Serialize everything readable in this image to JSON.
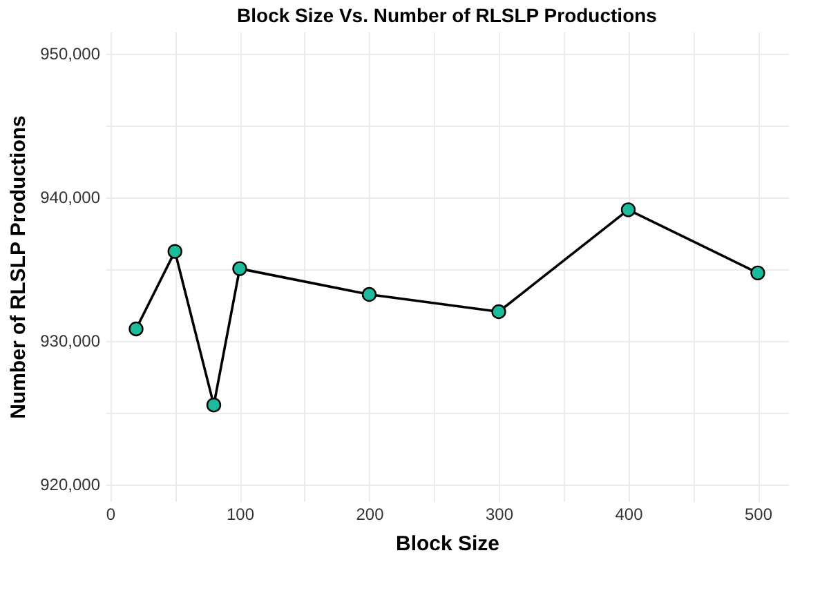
{
  "chart_data": {
    "type": "line",
    "title": "Block Size Vs. Number of RLSLP Productions",
    "xlabel": "Block Size",
    "ylabel": "Number of RLSLP Productions",
    "x": [
      20,
      50,
      80,
      100,
      200,
      300,
      400,
      500
    ],
    "series": [
      {
        "color": "#000000",
        "colors": [
          "#1abc9c",
          "#1abc9c",
          "#1abc9c",
          "#1abc9c",
          "#1abc9c",
          "#1abc9c",
          "#1abc9c",
          "#1abc9c"
        ],
        "values": [
          930800,
          936200,
          925500,
          935000,
          933200,
          932000,
          939100,
          934700
        ]
      }
    ],
    "xlim": [
      -4,
      524
    ],
    "ylim": [
      918800,
      951500
    ],
    "xticks": [
      0,
      {
        "value": 50,
        "label": null
      },
      100,
      {
        "value": 150,
        "label": null
      },
      200,
      {
        "value": 250,
        "label": null
      },
      300,
      {
        "value": 350,
        "label": null
      },
      400,
      {
        "value": 450,
        "label": null
      },
      500
    ],
    "yticks": [
      {
        "value": 920000,
        "label": "920,000"
      },
      {
        "value": 925000,
        "label": null
      },
      {
        "value": 930000,
        "label": "930,000"
      },
      {
        "value": 935000,
        "label": null
      },
      {
        "value": 940000,
        "label": "940,000"
      },
      {
        "value": 945000,
        "label": null
      },
      {
        "value": 950000,
        "label": "950,000"
      }
    ],
    "grid": true,
    "marker": "circle",
    "line_style": "solid"
  }
}
